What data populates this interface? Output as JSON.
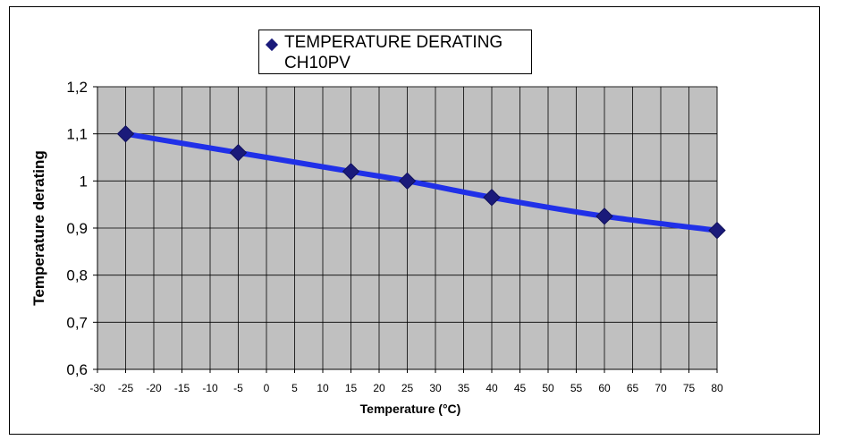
{
  "chart_data": {
    "type": "line",
    "title": "",
    "xlabel": "Temperature (°C)",
    "ylabel": "Temperature derating",
    "xlim": [
      -30,
      80
    ],
    "ylim": [
      0.6,
      1.2
    ],
    "x_ticks": [
      "-30",
      "-25",
      "-20",
      "-15",
      "-10",
      "-5",
      "0",
      "5",
      "10",
      "15",
      "20",
      "25",
      "30",
      "35",
      "40",
      "45",
      "50",
      "55",
      "60",
      "65",
      "70",
      "75",
      "80"
    ],
    "y_ticks": [
      "0,6",
      "0,7",
      "0,8",
      "0,9",
      "1",
      "1,1",
      "1,2"
    ],
    "grid": true,
    "legend_position": "top-center",
    "series": [
      {
        "name": "TEMPERATURE DERATING CH10PV",
        "name_line1": "TEMPERATURE DERATING",
        "name_line2": "CH10PV",
        "x": [
          -25,
          -5,
          15,
          25,
          40,
          60,
          80
        ],
        "y": [
          1.1,
          1.06,
          1.02,
          1.0,
          0.965,
          0.925,
          0.895
        ],
        "marker": "diamond",
        "marker_color": "#1a1a7a",
        "line_color": "#2030e8"
      }
    ],
    "plot_background": "#c0c0c0"
  }
}
